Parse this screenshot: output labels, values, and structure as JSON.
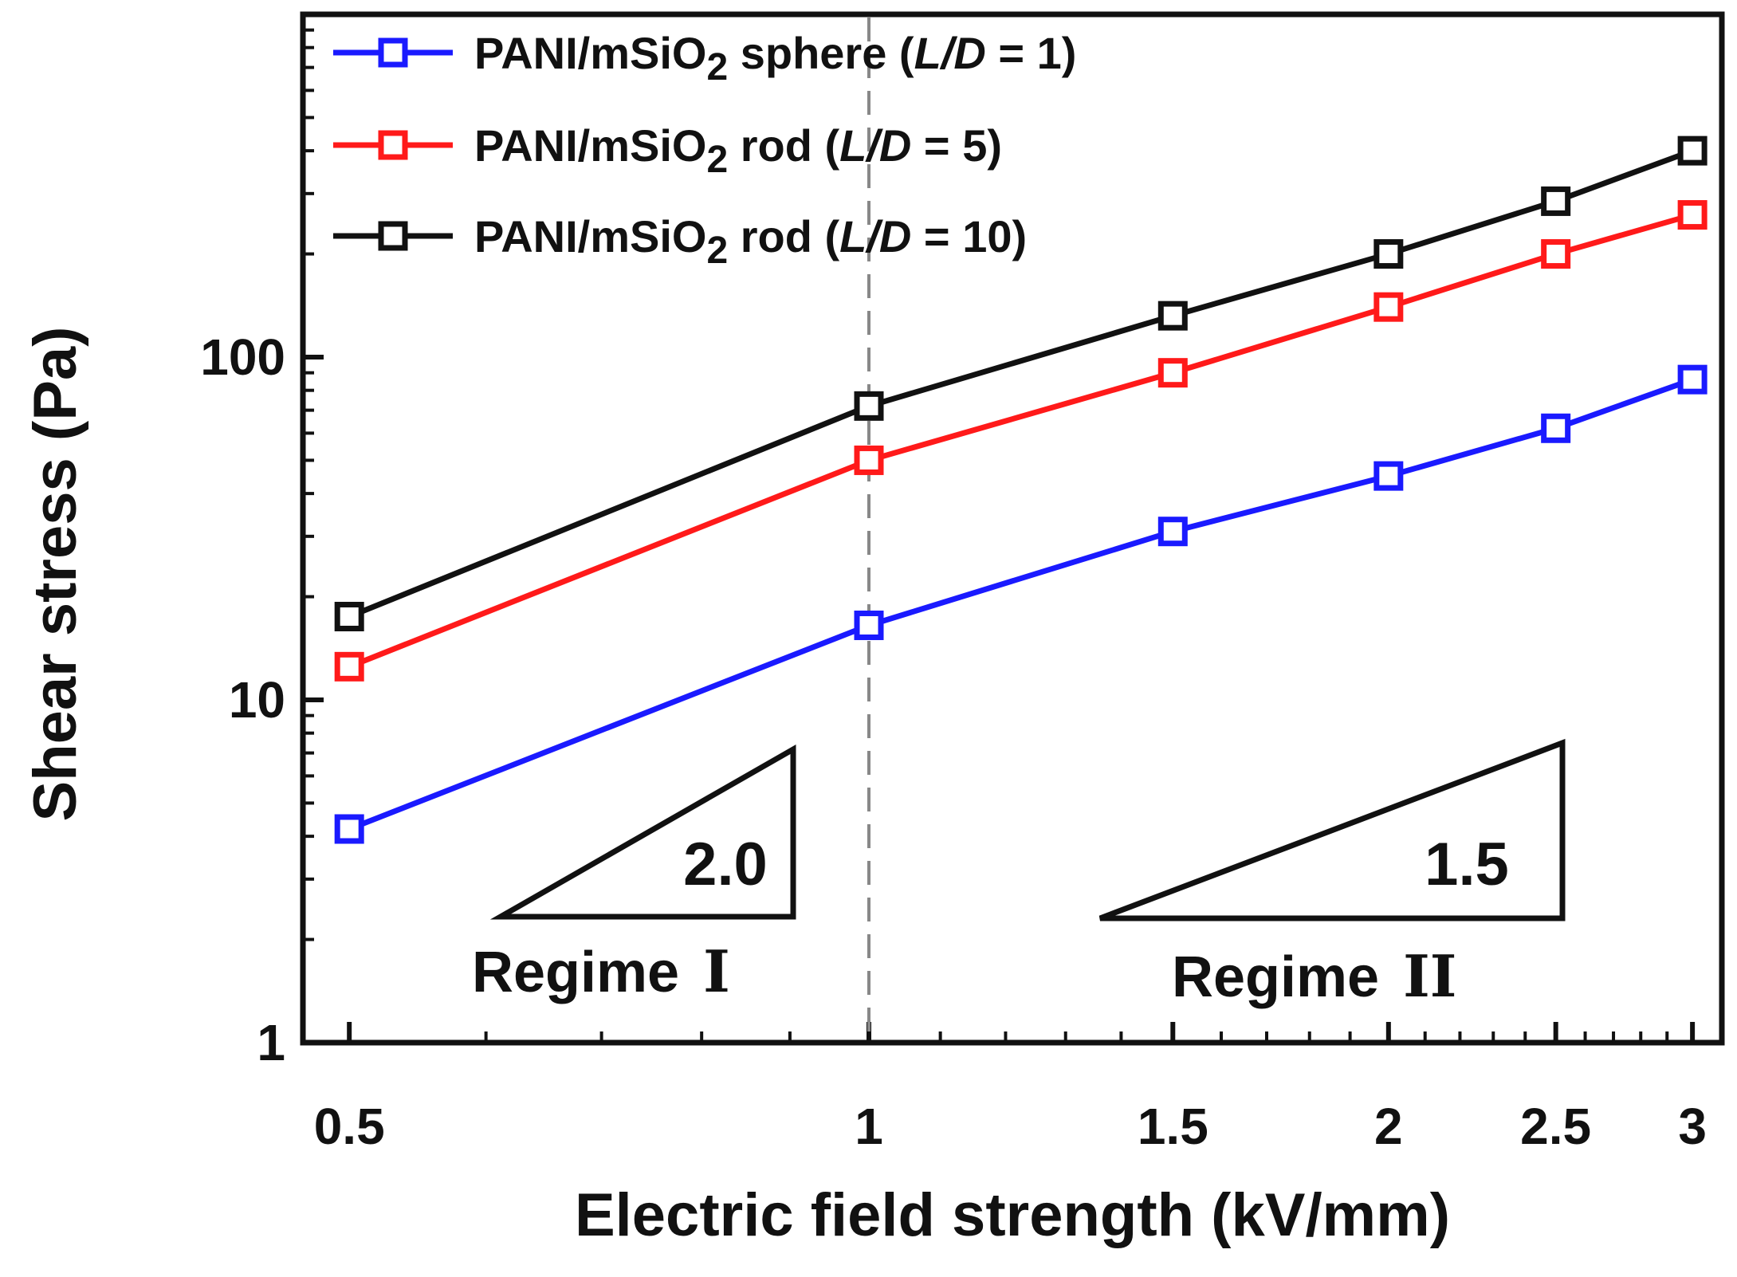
{
  "chart_data": {
    "type": "line",
    "xscale": "log",
    "yscale": "log",
    "xlabel": "Electric field strength (kV/mm)",
    "ylabel": "Shear stress (Pa)",
    "xlim": [
      0.47,
      3.12
    ],
    "ylim": [
      1,
      1000
    ],
    "xticks": [
      {
        "value": 0.5,
        "label": "0.5"
      },
      {
        "value": 1,
        "label": "1"
      },
      {
        "value": 1.5,
        "label": "1.5"
      },
      {
        "value": 2,
        "label": "2"
      },
      {
        "value": 2.5,
        "label": "2.5"
      },
      {
        "value": 3,
        "label": "3"
      }
    ],
    "yticks": [
      {
        "value": 1,
        "label": "1"
      },
      {
        "value": 10,
        "label": "10"
      },
      {
        "value": 100,
        "label": "100"
      }
    ],
    "x": [
      0.5,
      1,
      1.5,
      2,
      2.5,
      3
    ],
    "series": [
      {
        "name": "sphere",
        "legend_main": "PANI/mSiO",
        "legend_sub": "2",
        "legend_mid": " sphere (",
        "legend_ld": "L/D",
        "legend_end": " = 1)",
        "color": "#1a1aff",
        "values": [
          4.2,
          16.5,
          31,
          45,
          62,
          86
        ]
      },
      {
        "name": "rod L/D=5",
        "legend_main": "PANI/mSiO",
        "legend_sub": "2",
        "legend_mid": " rod (",
        "legend_ld": "L/D",
        "legend_end": " = 5)",
        "color": "#ff1a1a",
        "values": [
          12.5,
          50,
          90,
          140,
          200,
          260
        ]
      },
      {
        "name": "rod L/D=10",
        "legend_main": "PANI/mSiO",
        "legend_sub": "2",
        "legend_mid": " rod (",
        "legend_ld": "L/D",
        "legend_end": " = 10)",
        "color": "#111111",
        "values": [
          17.5,
          72,
          132,
          200,
          285,
          400
        ]
      }
    ],
    "annotations": {
      "slope1": "2.0",
      "slope2": "1.5",
      "regime1": "Regime",
      "regime1_numeral": "I",
      "regime2": "Regime",
      "regime2_numeral": "II"
    },
    "divider_x": 1,
    "legend_position": "top-left"
  }
}
